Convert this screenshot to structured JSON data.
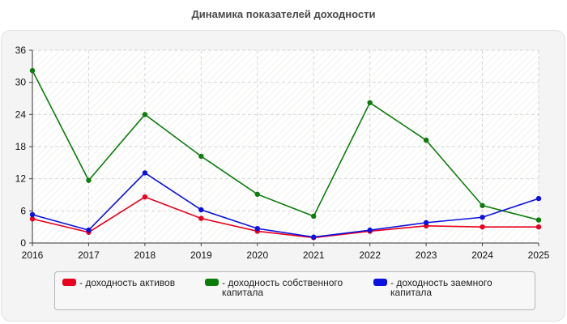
{
  "chart_data": {
    "type": "line",
    "title": "Динамика показателей доходности",
    "x": [
      "2016",
      "2017",
      "2018",
      "2019",
      "2020",
      "2021",
      "2022",
      "2023",
      "2024",
      "2025"
    ],
    "yticks": [
      "0",
      "6",
      "12",
      "18",
      "24",
      "30",
      "36"
    ],
    "ylim": [
      0,
      36
    ],
    "grid": true,
    "legend_position": "bottom",
    "series": [
      {
        "name": "- доходность активов",
        "color": "#e8001c",
        "values": [
          4.5,
          2.0,
          8.6,
          4.6,
          2.2,
          1.0,
          2.2,
          3.2,
          3.0,
          3.0
        ]
      },
      {
        "name": "- доходность собственного капитала",
        "color": "#0b7d0b",
        "values": [
          32.2,
          11.7,
          24.0,
          16.2,
          9.1,
          5.0,
          26.2,
          19.2,
          7.0,
          4.3
        ]
      },
      {
        "name": "- доходность заемного капитала",
        "color": "#0a10e0",
        "values": [
          5.3,
          2.4,
          13.1,
          6.2,
          2.7,
          1.1,
          2.4,
          3.8,
          4.8,
          8.3
        ]
      }
    ]
  }
}
